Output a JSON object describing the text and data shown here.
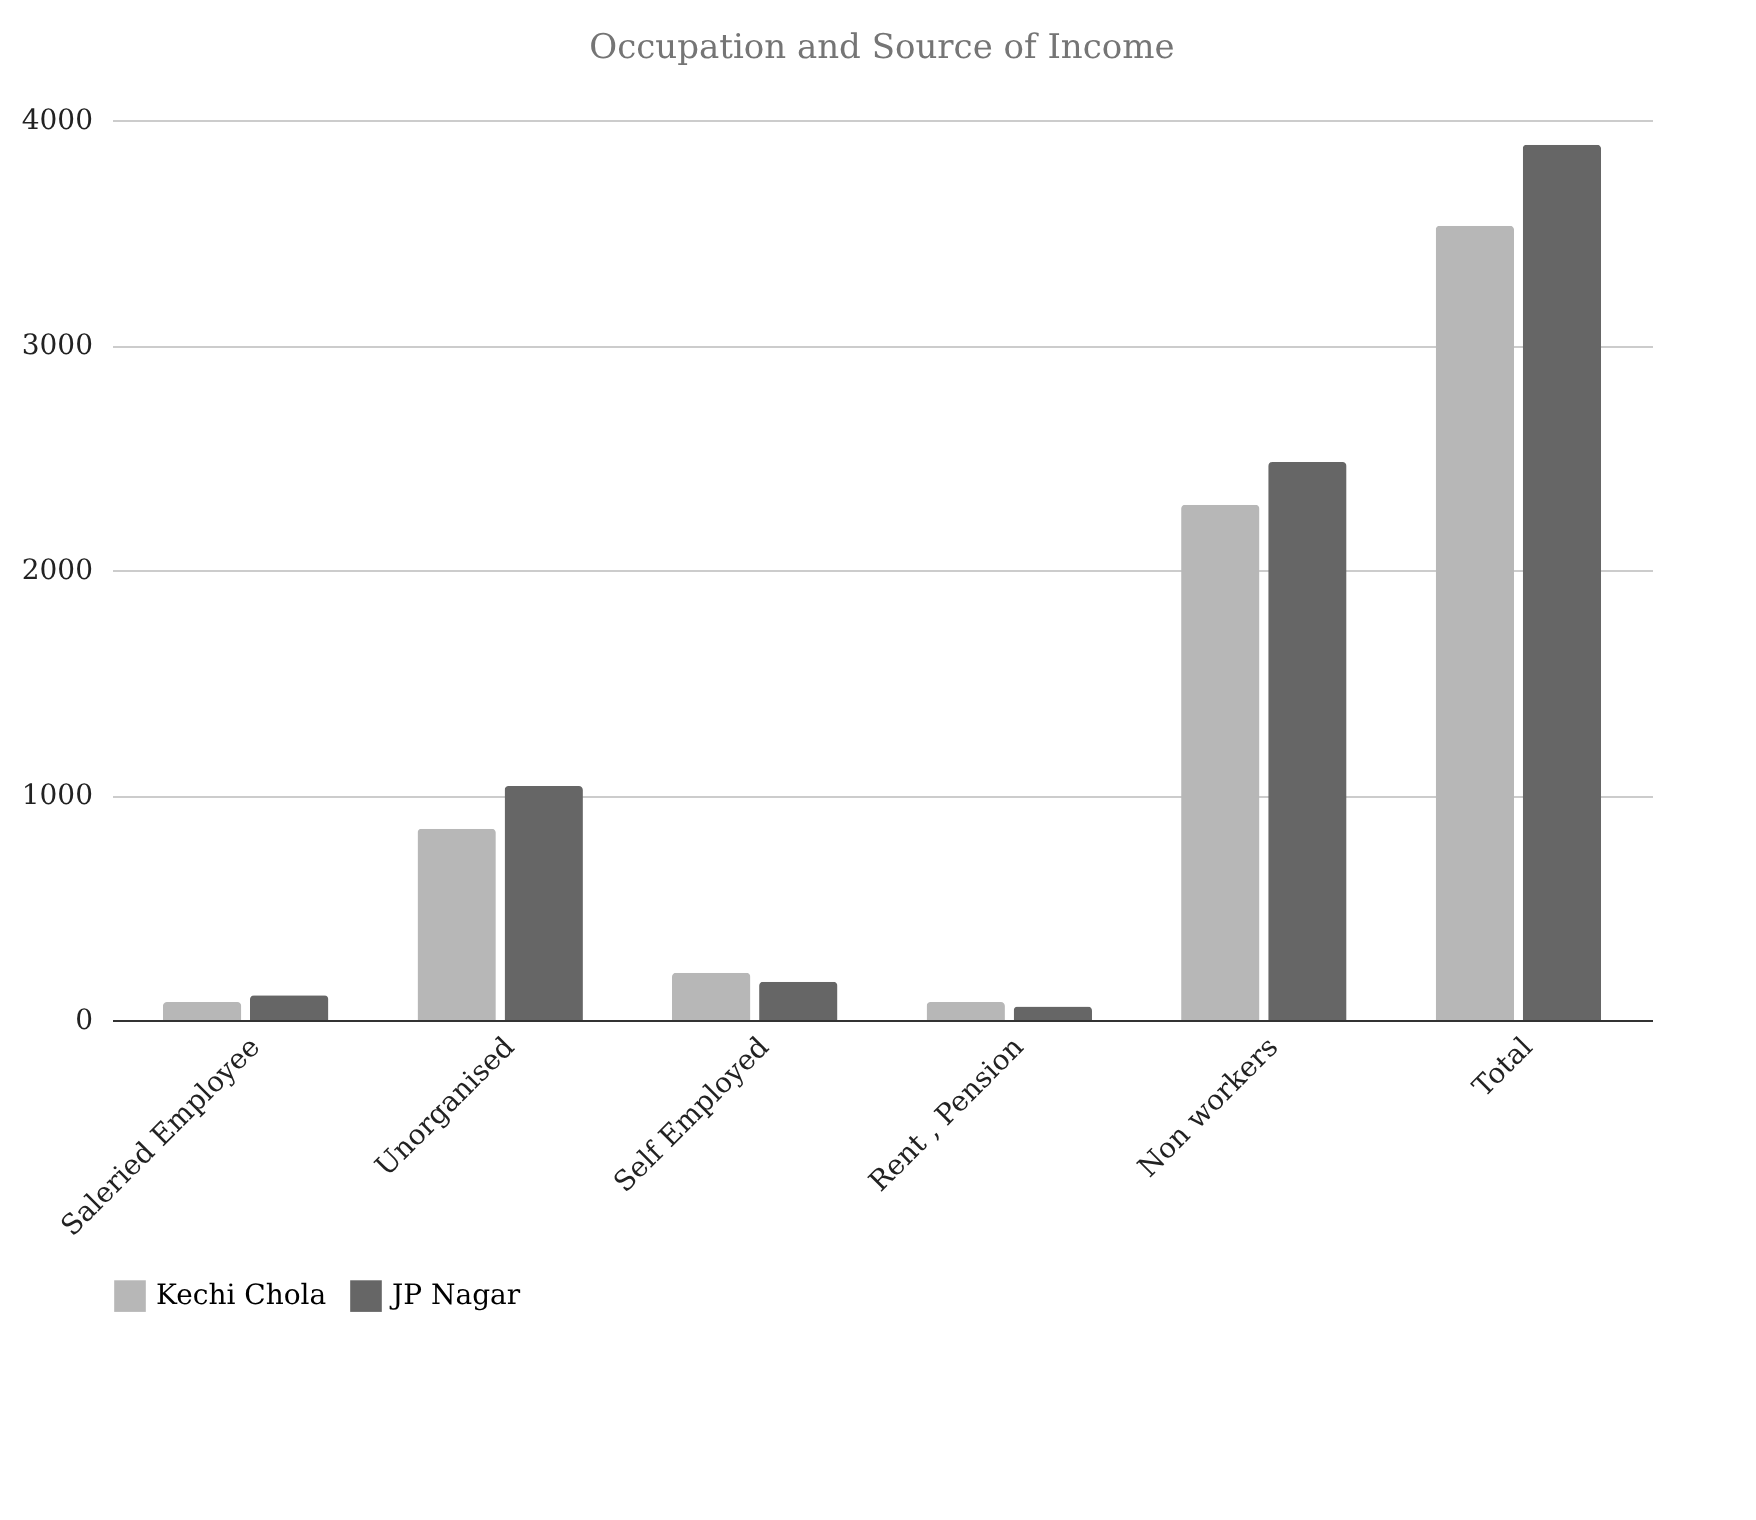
{
  "chart_data": {
    "type": "bar",
    "title": "Occupation and Source of Income",
    "categories": [
      "Saleried Employee",
      "Unorganised",
      "Self Employed",
      "Rent , Pension",
      "Non workers",
      "Total"
    ],
    "series": [
      {
        "name": "Kechi Chola",
        "color": "#b7b7b7",
        "values": [
          80,
          850,
          210,
          80,
          2290,
          3530
        ]
      },
      {
        "name": "JP Nagar",
        "color": "#666666",
        "values": [
          110,
          1040,
          170,
          60,
          2480,
          3890
        ]
      }
    ],
    "ylim": [
      0,
      4000
    ],
    "yticks": [
      0,
      1000,
      2000,
      3000,
      4000
    ],
    "grid": "y",
    "legend": "bottom"
  }
}
